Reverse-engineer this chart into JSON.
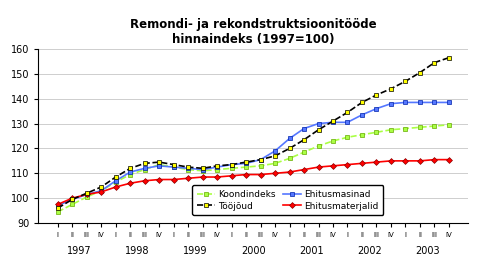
{
  "title": "Remondi- ja rekondstruktsioonitööde\nhinnaindeks (1997=100)",
  "ylim": [
    90,
    160
  ],
  "yticks": [
    90,
    100,
    110,
    120,
    130,
    140,
    150,
    160
  ],
  "years": [
    1997,
    1998,
    1999,
    2000,
    2001,
    2002,
    2003
  ],
  "quarters": [
    "I",
    "II",
    "III",
    "IV"
  ],
  "koondindeks": [
    94.5,
    97.5,
    100.5,
    103.0,
    106.5,
    109.5,
    111.5,
    113.5,
    112.5,
    111.5,
    111.0,
    111.5,
    112.0,
    112.5,
    113.0,
    114.0,
    116.0,
    118.5,
    121.0,
    123.0,
    124.5,
    125.5,
    126.5,
    127.5,
    128.0,
    128.5,
    129.0,
    129.5
  ],
  "tooojoud": [
    96.0,
    99.5,
    102.0,
    104.5,
    108.5,
    112.0,
    114.0,
    114.5,
    113.5,
    112.5,
    112.0,
    113.0,
    113.5,
    114.5,
    115.5,
    117.0,
    120.0,
    123.5,
    127.5,
    131.0,
    134.5,
    138.5,
    141.5,
    144.0,
    147.0,
    150.5,
    154.5,
    156.5
  ],
  "ehitusmasinad": [
    97.0,
    99.5,
    101.5,
    103.0,
    107.0,
    110.5,
    112.0,
    113.0,
    112.5,
    112.0,
    111.5,
    112.5,
    113.5,
    114.0,
    115.5,
    119.0,
    124.0,
    128.0,
    130.0,
    130.5,
    130.5,
    133.5,
    136.0,
    138.0,
    138.5,
    138.5,
    138.5,
    138.5
  ],
  "ehitusmaterjalid": [
    97.5,
    100.0,
    101.5,
    102.5,
    104.5,
    106.0,
    107.0,
    107.5,
    107.5,
    108.0,
    108.5,
    108.5,
    109.0,
    109.5,
    109.5,
    110.0,
    110.5,
    111.5,
    112.5,
    113.0,
    113.5,
    114.0,
    114.5,
    115.0,
    115.0,
    115.0,
    115.5,
    115.5
  ],
  "color_koondindeks": "#aaff44",
  "color_tooojoud": "#ffff00",
  "color_ehitusmasinad": "#5577ff",
  "color_ehitusmaterjalid": "#ff0000",
  "bg_color": "#ffffff"
}
